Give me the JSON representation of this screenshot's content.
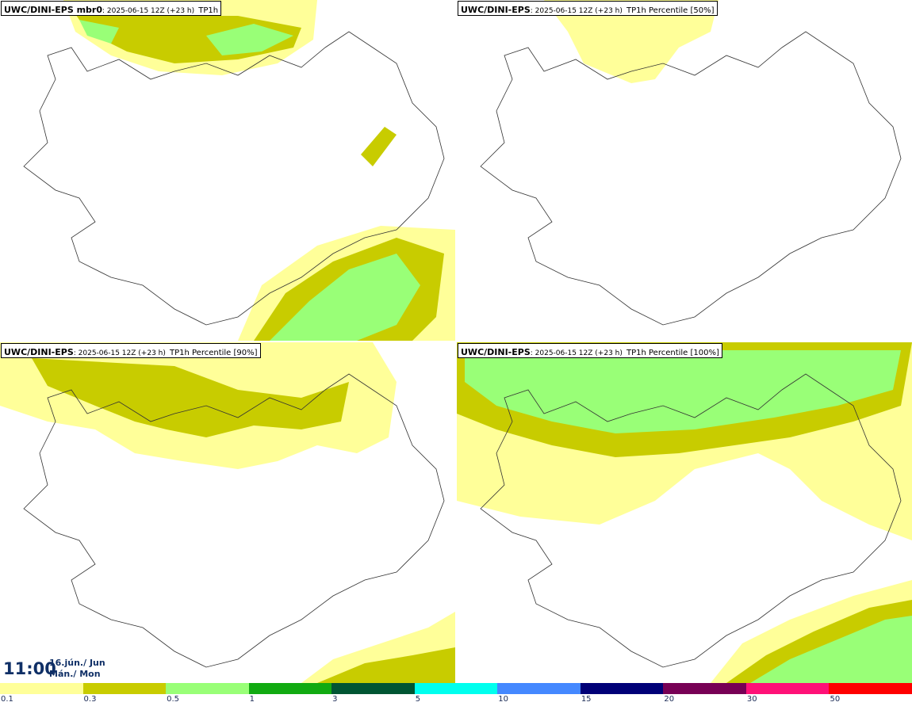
{
  "panels": [
    {
      "model": "UWC/DINI-EPS mbr0",
      "meta": ": 2025-06-15 12Z (+23 h)",
      "variable": "TP1h"
    },
    {
      "model": "UWC/DINI-EPS",
      "meta": ": 2025-06-15 12Z (+23 h)",
      "variable": "TP1h Percentile [50%]"
    },
    {
      "model": "UWC/DINI-EPS",
      "meta": ": 2025-06-15 12Z (+23 h)",
      "variable": "TP1h Percentile [90%]"
    },
    {
      "model": "UWC/DINI-EPS",
      "meta": ": 2025-06-15 12Z (+23 h)",
      "variable": "TP1h Percentile [100%]"
    }
  ],
  "valid_time": {
    "time": "11:00",
    "date_line1": "16.jún./ Jun",
    "date_line2": "Mán./ Mon"
  },
  "legend": {
    "colors": [
      "#ffff99",
      "#c8cc00",
      "#99ff77",
      "#11aa11",
      "#005533",
      "#00ffee",
      "#4488ff",
      "#000077",
      "#770055",
      "#ff1177",
      "#ff0000"
    ],
    "ticks": [
      "0.1",
      "0.3",
      "0.5",
      "1",
      "3",
      "5",
      "10",
      "15",
      "20",
      "30",
      "50"
    ]
  },
  "precip_colors": {
    "light": "#ffff99",
    "moderate": "#c8cc00",
    "heavy": "#99ff77",
    "very_heavy": "#11aa11"
  }
}
